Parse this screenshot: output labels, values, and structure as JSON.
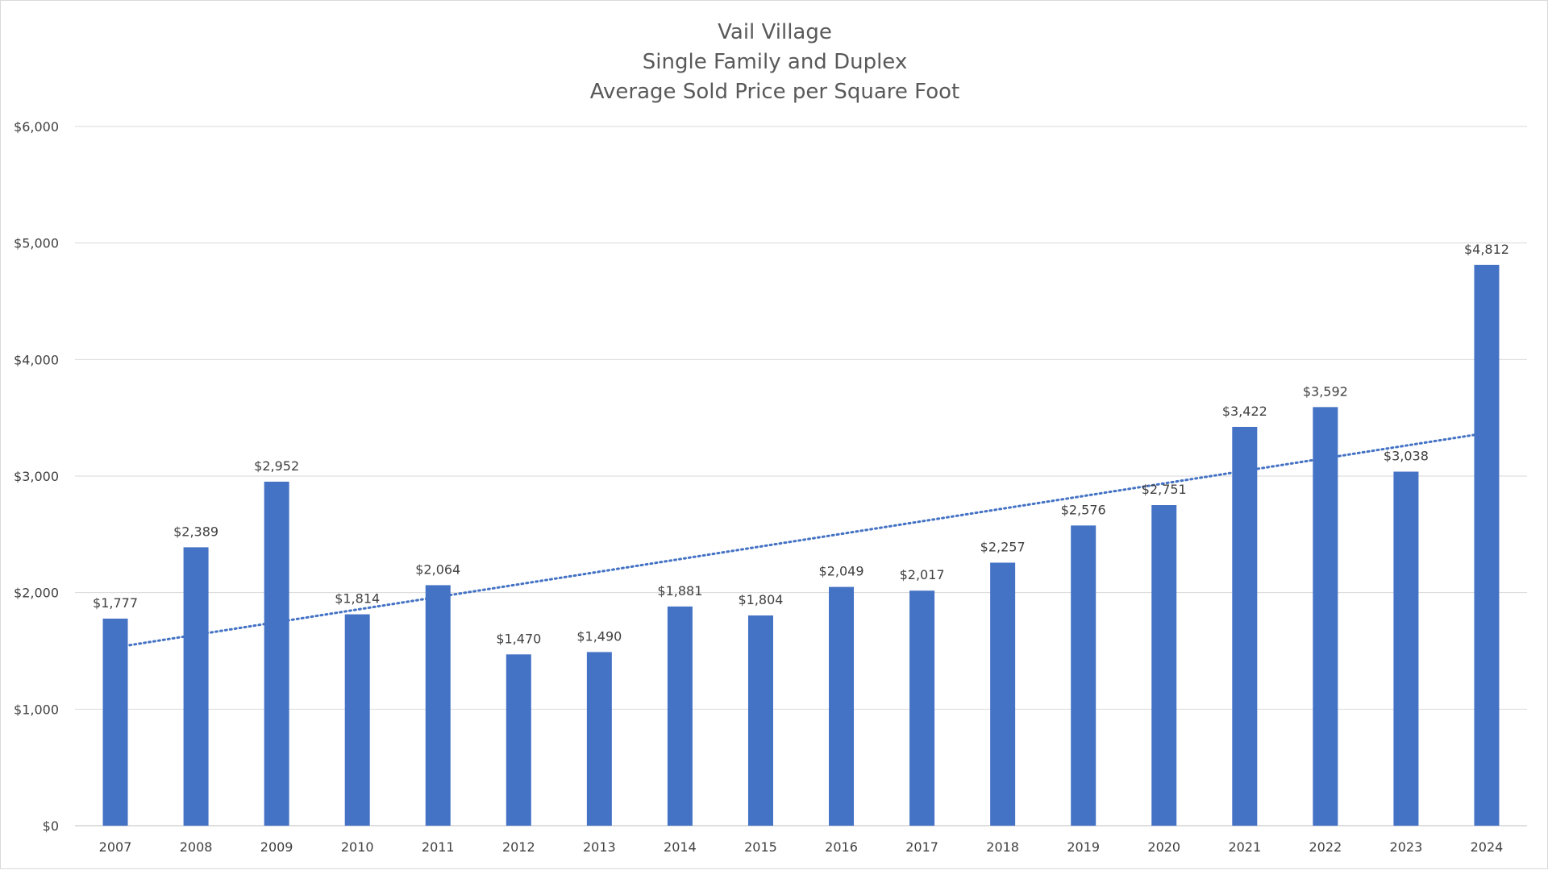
{
  "chart_data": {
    "type": "bar",
    "title_lines": [
      "Vail Village",
      "Single Family and Duplex",
      "Average Sold Price per Square Foot"
    ],
    "categories": [
      "2007",
      "2008",
      "2009",
      "2010",
      "2011",
      "2012",
      "2013",
      "2014",
      "2015",
      "2016",
      "2017",
      "2018",
      "2019",
      "2020",
      "2021",
      "2022",
      "2023",
      "2024"
    ],
    "values": [
      1777,
      2389,
      2952,
      1814,
      2064,
      1470,
      1490,
      1881,
      1804,
      2049,
      2017,
      2257,
      2576,
      2751,
      3422,
      3592,
      3038,
      4812
    ],
    "data_labels": [
      "$1,777",
      "$2,389",
      "$2,952",
      "$1,814",
      "$2,064",
      "$1,470",
      "$1,490",
      "$1,881",
      "$1,804",
      "$2,049",
      "$2,017",
      "$2,257",
      "$2,576",
      "$2,751",
      "$3,422",
      "$3,592",
      "$3,038",
      "$4,812"
    ],
    "ylim": [
      0,
      6000
    ],
    "y_ticks": [
      0,
      1000,
      2000,
      3000,
      4000,
      5000,
      6000
    ],
    "y_tick_labels": [
      "$0",
      "$1,000",
      "$2,000",
      "$3,000",
      "$4,000",
      "$5,000",
      "$6,000"
    ],
    "grid": true,
    "bar_color": "#4472C4",
    "trendline": {
      "type": "linear",
      "style": "dotted",
      "color": "#4472C4",
      "start_value": 1530,
      "end_value": 3370
    }
  }
}
